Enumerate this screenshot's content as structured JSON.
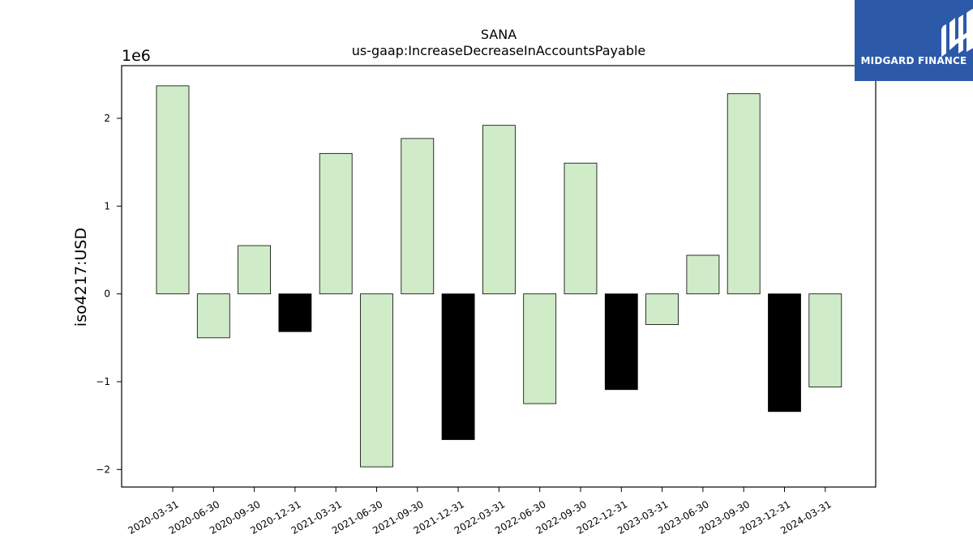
{
  "chart_data": {
    "type": "bar",
    "title": "SANA",
    "subtitle": "us-gaap:IncreaseDecreaseInAccountsPayable",
    "ylabel": "iso4217:USD",
    "xlabel": "",
    "y_offset_label": "1e6",
    "y_scale": 1000000,
    "categories": [
      "2020-03-31",
      "2020-06-30",
      "2020-09-30",
      "2020-12-31",
      "2021-03-31",
      "2021-06-30",
      "2021-09-30",
      "2021-12-31",
      "2022-03-31",
      "2022-06-30",
      "2022-09-30",
      "2022-12-31",
      "2023-03-31",
      "2023-06-30",
      "2023-09-30",
      "2023-12-31",
      "2024-03-31"
    ],
    "values": [
      2370000,
      -500000,
      550000,
      -430000,
      1600000,
      -1970000,
      1770000,
      -1660000,
      1920000,
      -1250000,
      1490000,
      -1090000,
      -350000,
      440000,
      2280000,
      -1340000,
      -1060000
    ],
    "bar_colors": [
      "#d0ebc8",
      "#d0ebc8",
      "#d0ebc8",
      "#000000",
      "#d0ebc8",
      "#d0ebc8",
      "#d0ebc8",
      "#000000",
      "#d0ebc8",
      "#d0ebc8",
      "#d0ebc8",
      "#000000",
      "#d0ebc8",
      "#d0ebc8",
      "#d0ebc8",
      "#000000",
      "#d0ebc8"
    ],
    "yticks": [
      -2,
      -1,
      0,
      1,
      2
    ],
    "ytick_labels": [
      "−2",
      "−1",
      "0",
      "1",
      "2"
    ],
    "ylim": [
      -2200000,
      2600000
    ],
    "grid": false,
    "legend": "none"
  },
  "logo": {
    "text": "MIDGARD FINANCE",
    "background": "#2c5aa8"
  }
}
